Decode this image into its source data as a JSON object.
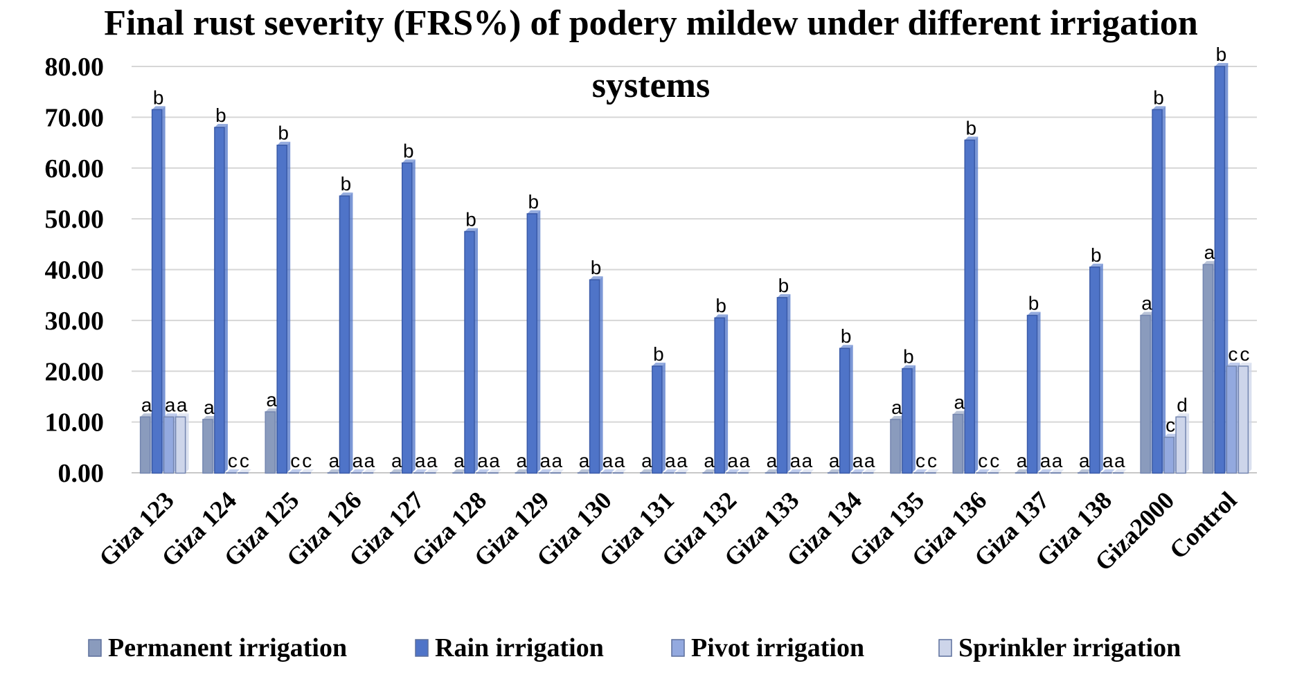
{
  "chart_data": {
    "type": "bar",
    "title": "Final rust severity (FRS%) of podery mildew under different irrigation",
    "title_line2": "systems",
    "ylim": [
      0,
      80
    ],
    "yticks": [
      "0.00",
      "10.00",
      "20.00",
      "30.00",
      "40.00",
      "50.00",
      "60.00",
      "70.00",
      "80.00"
    ],
    "grid": true,
    "legend_position": "bottom",
    "categories": [
      "Giza 123",
      "Giza 124",
      "Giza 125",
      "Giza 126",
      "Giza 127",
      "Giza 128",
      "Giza 129",
      "Giza 130",
      "Giza 131",
      "Giza 132",
      "Giza 133",
      "Giza 134",
      "Giza 135",
      "Giza 136",
      "Giza 137",
      "Giza 138",
      "Giza2000",
      "Control"
    ],
    "series": [
      {
        "name": "Permanent irrigation",
        "color": "#8a9bbd",
        "values": [
          11,
          10.5,
          12,
          0,
          0,
          0,
          0,
          0,
          0,
          0,
          0,
          0,
          10.5,
          11.5,
          0,
          0,
          31,
          41
        ],
        "labels": [
          "a",
          "a",
          "a",
          "a",
          "a",
          "a",
          "a",
          "a",
          "a",
          "a",
          "a",
          "a",
          "a",
          "a",
          "a",
          "a",
          "a",
          "a"
        ]
      },
      {
        "name": "Rain irrigation",
        "color": "#4f74c8",
        "values": [
          71.5,
          68,
          64.5,
          54.5,
          61,
          47.5,
          51,
          38,
          21,
          30.5,
          34.5,
          24.5,
          20.5,
          65.5,
          31,
          40.5,
          71.5,
          80
        ],
        "labels": [
          "b",
          "b",
          "b",
          "b",
          "b",
          "b",
          "b",
          "b",
          "b",
          "b",
          "b",
          "b",
          "b",
          "b",
          "b",
          "b",
          "b",
          "b"
        ]
      },
      {
        "name": "Pivot irrigation",
        "color": "#93a9df",
        "values": [
          11,
          0,
          0,
          0,
          0,
          0,
          0,
          0,
          0,
          0,
          0,
          0,
          0,
          0,
          0,
          0,
          7,
          21
        ],
        "labels": [
          "a",
          "c",
          "c",
          "a",
          "a",
          "a",
          "a",
          "a",
          "a",
          "a",
          "a",
          "a",
          "c",
          "c",
          "a",
          "a",
          "c",
          "c"
        ]
      },
      {
        "name": "Sprinkler irrigation",
        "color": "#cdd5ea",
        "values": [
          11,
          0,
          0,
          0,
          0,
          0,
          0,
          0,
          0,
          0,
          0,
          0,
          0,
          0,
          0,
          0,
          11,
          21
        ],
        "labels": [
          "a",
          "c",
          "c",
          "a",
          "a",
          "a",
          "a",
          "a",
          "a",
          "a",
          "a",
          "a",
          "c",
          "c",
          "a",
          "a",
          "d",
          "c"
        ]
      }
    ]
  }
}
